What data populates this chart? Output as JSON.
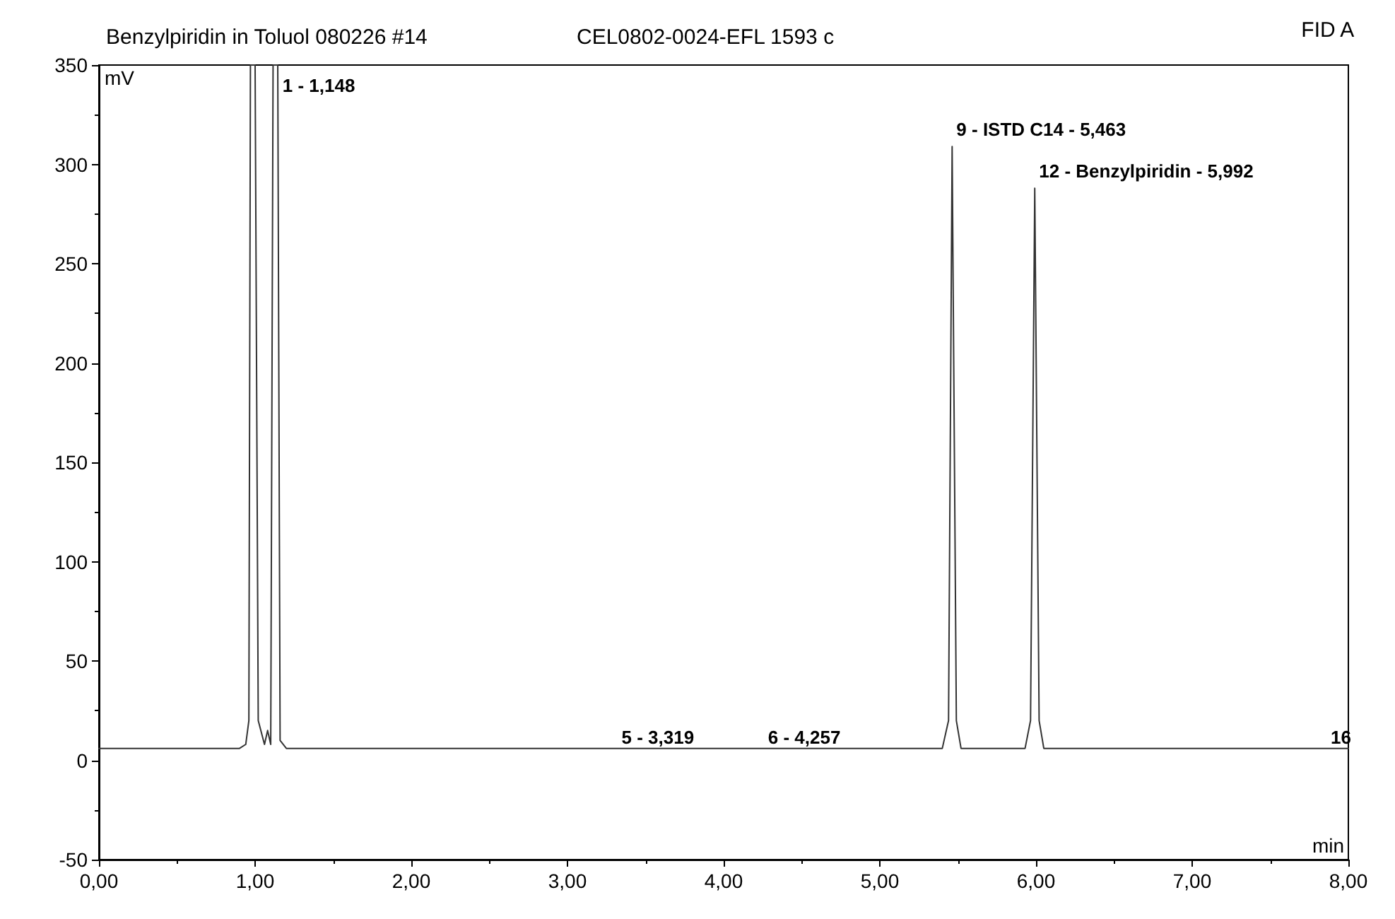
{
  "chart_data": {
    "type": "line",
    "title": "Benzylpiridin in Toluol 080226 #14",
    "subtitle": "CEL0802-0024-EFL 1593 c",
    "xlabel": "min",
    "ylabel": "mV",
    "x": [
      0,
      0.9,
      0.94,
      0.96,
      0.97,
      0.985,
      1.0,
      1.02,
      1.06,
      1.08,
      1.1,
      1.115,
      1.13,
      1.145,
      1.16,
      1.2,
      1.3,
      1.4,
      2,
      3.3,
      4.2,
      5.3,
      5.4,
      5.44,
      5.463,
      5.49,
      5.52,
      5.6,
      5.93,
      5.965,
      5.992,
      6.02,
      6.05,
      6.2,
      8
    ],
    "series": [
      {
        "color": "#333333",
        "values": [
          6,
          6,
          8,
          20,
          350,
          350,
          350,
          20,
          8,
          15,
          8,
          350,
          350,
          350,
          10,
          6,
          6,
          6,
          6,
          6,
          6,
          6,
          6,
          20,
          309,
          20,
          6,
          6,
          6,
          20,
          288,
          20,
          6,
          6,
          6
        ]
      }
    ],
    "xlim": [
      0,
      8
    ],
    "ylim": [
      -50,
      350
    ],
    "xticks": [
      {
        "value": 0,
        "label": "0,00"
      },
      {
        "value": 1,
        "label": "1,00"
      },
      {
        "value": 2,
        "label": "2,00"
      },
      {
        "value": 3,
        "label": "3,00"
      },
      {
        "value": 4,
        "label": "4,00"
      },
      {
        "value": 5,
        "label": "5,00"
      },
      {
        "value": 6,
        "label": "6,00"
      },
      {
        "value": 7,
        "label": "7,00"
      },
      {
        "value": 8,
        "label": "8,00"
      }
    ],
    "yticks": [
      -50,
      0,
      50,
      100,
      150,
      200,
      250,
      300,
      350
    ],
    "annotations": [
      "FID A",
      {
        "text": "1 - 1,148",
        "x": 1.148,
        "y": 335
      },
      {
        "text": "9 - ISTD C14 - 5,463",
        "x": 5.463,
        "y": 313
      },
      {
        "text": "12 - Benzylpiridin - 5,992",
        "x": 5.992,
        "y": 292
      },
      {
        "text": "5 - 3,319",
        "x": 3.319,
        "y": 7
      },
      {
        "text": "6 - 4,257",
        "x": 4.257,
        "y": 7
      },
      {
        "text": "16",
        "x": 7.86,
        "y": 7
      }
    ],
    "grid": false,
    "marker": "none",
    "line_style": "solid"
  }
}
